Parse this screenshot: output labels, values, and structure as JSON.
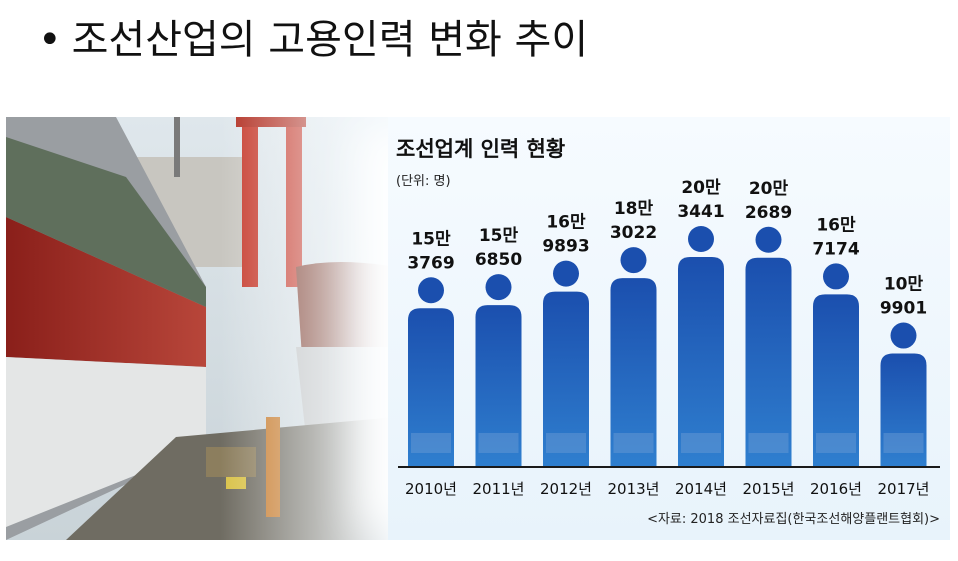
{
  "slide": {
    "title": "조선산업의 고용인력 변화 추이"
  },
  "chart_data": {
    "type": "bar",
    "title": "조선업계 인력 현황",
    "unit": "(단위: 명)",
    "categories": [
      "2010년",
      "2011년",
      "2012년",
      "2013년",
      "2014년",
      "2015년",
      "2016년",
      "2017년"
    ],
    "values": [
      153769,
      156850,
      169893,
      183022,
      203441,
      202689,
      167174,
      109901
    ],
    "value_labels": [
      [
        "15만",
        "3769"
      ],
      [
        "15만",
        "6850"
      ],
      [
        "16만",
        "9893"
      ],
      [
        "18만",
        "3022"
      ],
      [
        "20만",
        "3441"
      ],
      [
        "20만",
        "2689"
      ],
      [
        "16만",
        "7174"
      ],
      [
        "10만",
        "9901"
      ]
    ],
    "source": "<자료: 2018 조선자료집(한국조선해양플랜트협회)>",
    "colors": {
      "bar_top": "#1b4fae",
      "bar_bottom": "#2f7fcf",
      "baseline": "#1a1a1a"
    }
  }
}
